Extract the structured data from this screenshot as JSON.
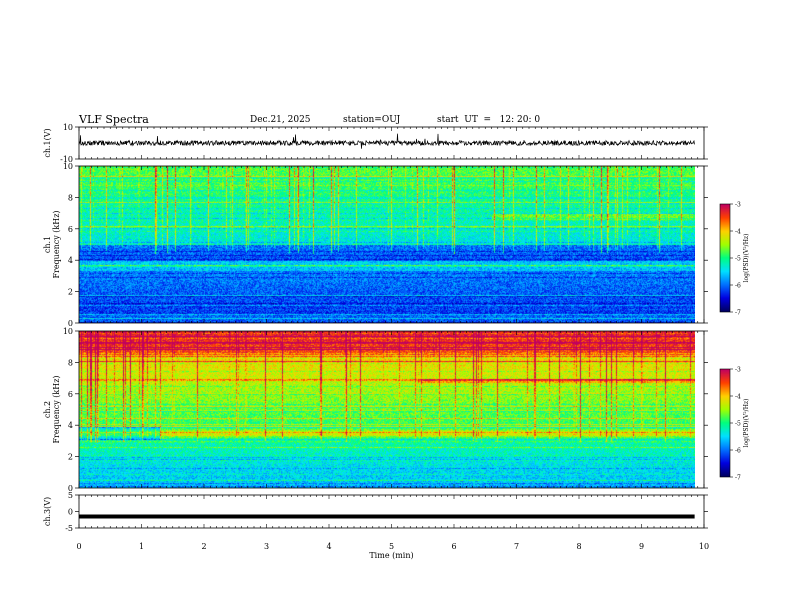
{
  "header": {
    "title": "VLF Spectra",
    "date": "Dec.21, 2025",
    "station": "station=OUJ",
    "start_time": "start  UT  =   12: 20: 0"
  },
  "chart_data": [
    {
      "type": "line",
      "name": "ch1-waveform",
      "ylabel": "ch.1(V)",
      "ylim": [
        -10,
        10
      ],
      "yticks": [
        10,
        -10
      ],
      "x_range_min": [
        0,
        9.85
      ],
      "baseline_v": 0,
      "noise_amplitude_v": 1.5
    },
    {
      "type": "heatmap",
      "name": "ch1-spectrogram",
      "ylabel": "ch.1",
      "ylabel2": "Frequency (kHz)",
      "ylim": [
        0,
        10
      ],
      "yticks": [
        0,
        2,
        4,
        6,
        8,
        10
      ],
      "x_range_min": [
        0,
        9.85
      ],
      "colorbar": {
        "label": "log(PSD)(V²/Hz)",
        "range": [
          -7,
          -3
        ],
        "ticks": [
          "-3",
          "-4",
          "-5",
          "-6",
          "-7"
        ]
      }
    },
    {
      "type": "heatmap",
      "name": "ch2-spectrogram",
      "ylabel": "ch.2",
      "ylabel2": "Frequency (kHz)",
      "ylim": [
        0,
        10
      ],
      "yticks": [
        0,
        2,
        4,
        6,
        8,
        10
      ],
      "x_range_min": [
        0,
        9.85
      ],
      "band_khz": 3.5,
      "colorbar": {
        "label": "log(PSD)(V²/Hz)",
        "range": [
          -7,
          -3
        ],
        "ticks": [
          "-3",
          "-4",
          "-5",
          "-6",
          "-7"
        ]
      }
    },
    {
      "type": "line",
      "name": "ch3-waveform",
      "ylabel": "ch.3(V)",
      "ylim": [
        -5,
        5
      ],
      "yticks": [
        5,
        0,
        -5
      ],
      "x_range_min": [
        0,
        9.85
      ],
      "constant_v": -1.5
    }
  ],
  "xaxis": {
    "label": "Time (min)",
    "range": [
      0,
      10
    ],
    "ticks": [
      "0",
      "1",
      "2",
      "3",
      "4",
      "5",
      "6",
      "7",
      "8",
      "9",
      "10"
    ]
  },
  "colors": {
    "background": "#ffffff",
    "axis": "#000000",
    "colormap": [
      "#000060",
      "#0000e0",
      "#0070ff",
      "#00e0ff",
      "#00ff80",
      "#a0ff00",
      "#ffd000",
      "#ff4000",
      "#c00060"
    ]
  }
}
